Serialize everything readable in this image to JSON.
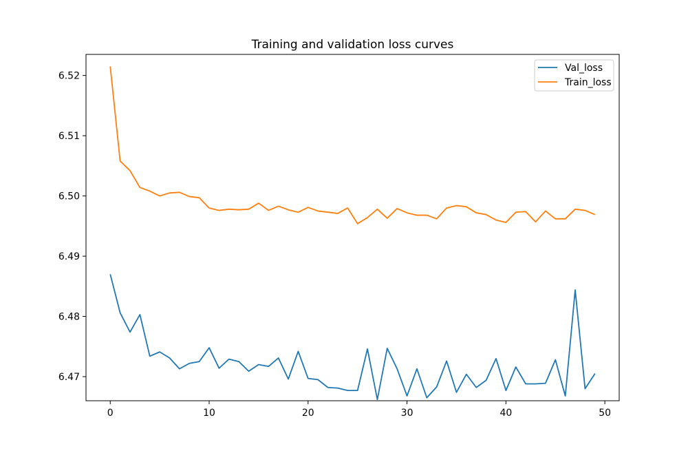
{
  "chart_data": {
    "type": "line",
    "title": "Training and validation loss curves",
    "xlabel": "",
    "ylabel": "",
    "xlim": [
      -2.45,
      51.45
    ],
    "ylim": [
      6.466,
      6.5235
    ],
    "x_ticks": [
      0,
      10,
      20,
      30,
      40,
      50
    ],
    "y_ticks": [
      6.47,
      6.48,
      6.49,
      6.5,
      6.51,
      6.52
    ],
    "x_tick_labels": [
      "0",
      "10",
      "20",
      "30",
      "40",
      "50"
    ],
    "y_tick_labels": [
      "6.47",
      "6.48",
      "6.49",
      "6.50",
      "6.51",
      "6.52"
    ],
    "grid": false,
    "legend_position": "top-right",
    "x": [
      0,
      1,
      2,
      3,
      4,
      5,
      6,
      7,
      8,
      9,
      10,
      11,
      12,
      13,
      14,
      15,
      16,
      17,
      18,
      19,
      20,
      21,
      22,
      23,
      24,
      25,
      26,
      27,
      28,
      29,
      30,
      31,
      32,
      33,
      34,
      35,
      36,
      37,
      38,
      39,
      40,
      41,
      42,
      43,
      44,
      45,
      46,
      47,
      48,
      49
    ],
    "series": [
      {
        "name": "Val_loss",
        "color": "#1f77b4",
        "values": [
          6.487,
          6.4806,
          6.4774,
          6.4803,
          6.4734,
          6.4741,
          6.4731,
          6.4713,
          6.4722,
          6.4725,
          6.4748,
          6.4714,
          6.4729,
          6.4725,
          6.4709,
          6.472,
          6.4717,
          6.4731,
          6.4696,
          6.4742,
          6.4697,
          6.4695,
          6.4682,
          6.4681,
          6.4677,
          6.4677,
          6.4746,
          6.4662,
          6.4747,
          6.4713,
          6.4668,
          6.4713,
          6.4665,
          6.4683,
          6.4726,
          6.4674,
          6.4704,
          6.4682,
          6.4694,
          6.473,
          6.4677,
          6.4716,
          6.4688,
          6.4688,
          6.4689,
          6.4728,
          6.4668,
          6.4844,
          6.468,
          6.4705
        ]
      },
      {
        "name": "Train_loss",
        "color": "#ff7f0e",
        "values": [
          6.5215,
          6.5058,
          6.5042,
          6.5014,
          6.5008,
          6.5,
          6.5005,
          6.5006,
          6.4999,
          6.4997,
          6.498,
          6.4976,
          6.4978,
          6.4977,
          6.4978,
          6.4988,
          6.4976,
          6.4983,
          6.4977,
          6.4973,
          6.4981,
          6.4975,
          6.4973,
          6.4971,
          6.498,
          6.4954,
          6.4964,
          6.4978,
          6.4963,
          6.4979,
          6.4972,
          6.4968,
          6.4968,
          6.4962,
          6.498,
          6.4984,
          6.4982,
          6.4972,
          6.4969,
          6.496,
          6.4956,
          6.4973,
          6.4974,
          6.4957,
          6.4975,
          6.4962,
          6.4962,
          6.4978,
          6.4976,
          6.4969
        ]
      }
    ]
  }
}
